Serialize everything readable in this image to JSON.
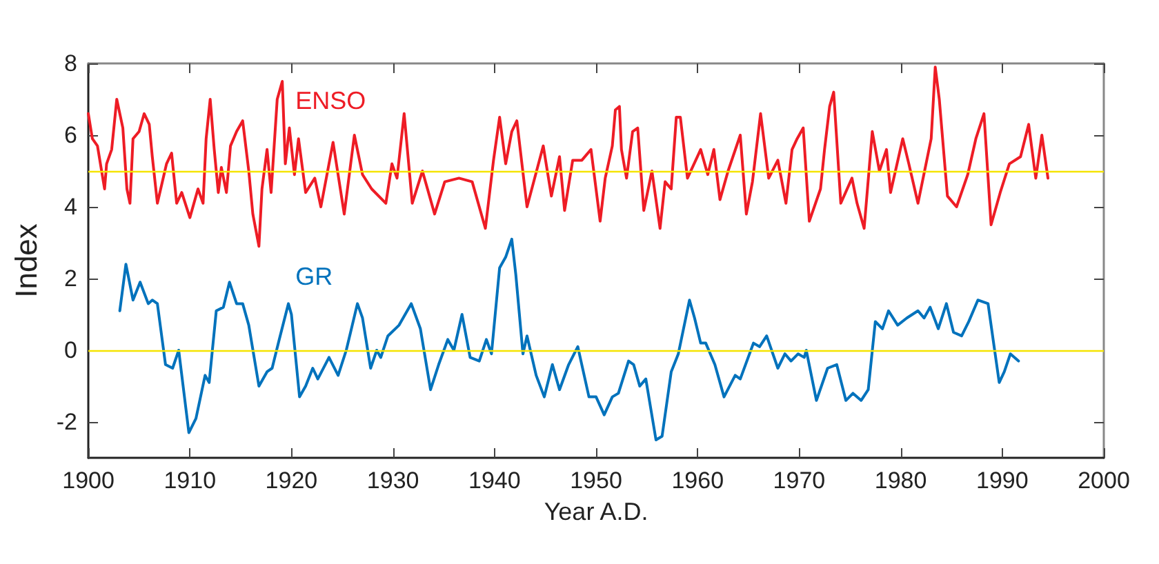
{
  "chart_data": {
    "type": "line",
    "xlabel": "Year A.D.",
    "ylabel": "Index",
    "xlim": [
      1900,
      2000
    ],
    "xticks": [
      1900,
      1910,
      1920,
      1930,
      1940,
      1950,
      1960,
      1970,
      1980,
      1990,
      2000
    ],
    "ylim": [
      -3,
      8
    ],
    "yticks": [
      -2,
      0,
      2,
      4,
      6,
      8
    ],
    "grid": false,
    "legend": false,
    "marker": "none",
    "line_style": "solid",
    "ref_lines": [
      {
        "axis": "y",
        "value": 5,
        "color": "#f5e400"
      },
      {
        "axis": "y",
        "value": 0,
        "color": "#f5e400"
      }
    ],
    "series": [
      {
        "name": "ENSO",
        "color": "#ee1c25",
        "x": [
          1900.0,
          1900.4,
          1900.9,
          1901.6,
          1901.8,
          1902.3,
          1902.8,
          1903.4,
          1903.8,
          1904.1,
          1904.4,
          1905.0,
          1905.5,
          1906.0,
          1906.3,
          1906.8,
          1907.7,
          1908.2,
          1908.7,
          1909.2,
          1910.0,
          1910.8,
          1911.3,
          1911.6,
          1912.0,
          1912.4,
          1912.8,
          1913.1,
          1913.6,
          1914.0,
          1914.6,
          1915.2,
          1915.8,
          1916.2,
          1916.8,
          1917.1,
          1917.6,
          1918.0,
          1918.6,
          1919.1,
          1919.4,
          1919.8,
          1920.3,
          1920.7,
          1921.4,
          1922.3,
          1922.9,
          1924.1,
          1925.2,
          1926.2,
          1927.0,
          1927.9,
          1929.3,
          1929.9,
          1930.4,
          1931.1,
          1931.9,
          1932.9,
          1934.1,
          1935.1,
          1936.5,
          1937.8,
          1939.1,
          1939.9,
          1940.5,
          1941.1,
          1941.7,
          1942.2,
          1943.2,
          1944.8,
          1945.6,
          1946.4,
          1946.9,
          1947.7,
          1948.6,
          1949.5,
          1950.4,
          1950.9,
          1951.6,
          1951.9,
          1952.3,
          1952.5,
          1953.0,
          1953.6,
          1954.1,
          1954.7,
          1955.5,
          1956.3,
          1956.8,
          1957.4,
          1957.9,
          1958.3,
          1959.0,
          1960.3,
          1961.0,
          1961.6,
          1962.2,
          1963.0,
          1964.2,
          1964.8,
          1965.4,
          1966.2,
          1967.0,
          1967.9,
          1968.7,
          1969.3,
          1969.8,
          1970.4,
          1971.0,
          1972.1,
          1972.5,
          1973.0,
          1973.4,
          1974.1,
          1975.2,
          1975.7,
          1976.4,
          1977.2,
          1977.9,
          1978.6,
          1979.0,
          1980.2,
          1980.8,
          1981.7,
          1983.0,
          1983.4,
          1983.8,
          1984.6,
          1985.5,
          1986.6,
          1987.4,
          1988.2,
          1988.9,
          1989.8,
          1990.7,
          1991.8,
          1992.6,
          1993.3,
          1993.9,
          1994.5
        ],
        "values": [
          6.6,
          5.9,
          5.7,
          4.5,
          5.2,
          5.6,
          7.0,
          6.2,
          4.5,
          4.1,
          5.9,
          6.1,
          6.6,
          6.3,
          5.4,
          4.1,
          5.2,
          5.5,
          4.1,
          4.4,
          3.7,
          4.5,
          4.1,
          5.9,
          7.0,
          5.6,
          4.4,
          5.1,
          4.4,
          5.7,
          6.1,
          6.4,
          5.0,
          3.8,
          2.9,
          4.5,
          5.6,
          4.4,
          7.0,
          7.5,
          5.2,
          6.2,
          4.9,
          5.9,
          4.4,
          4.8,
          4.0,
          5.8,
          3.8,
          6.0,
          4.9,
          4.5,
          4.1,
          5.2,
          4.8,
          6.6,
          4.1,
          5.0,
          3.8,
          4.7,
          4.8,
          4.7,
          3.4,
          5.3,
          6.5,
          5.2,
          6.1,
          6.4,
          4.0,
          5.7,
          4.3,
          5.4,
          3.9,
          5.3,
          5.3,
          5.6,
          3.6,
          4.8,
          5.7,
          6.7,
          6.8,
          5.6,
          4.8,
          6.1,
          6.2,
          3.9,
          5.0,
          3.4,
          4.7,
          4.5,
          6.5,
          6.5,
          4.8,
          5.6,
          4.9,
          5.6,
          4.2,
          5.0,
          6.0,
          3.8,
          4.7,
          6.6,
          4.8,
          5.3,
          4.1,
          5.6,
          5.9,
          6.2,
          3.6,
          4.5,
          5.6,
          6.8,
          7.2,
          4.1,
          4.8,
          4.1,
          3.4,
          6.1,
          5.0,
          5.6,
          4.4,
          5.9,
          5.2,
          4.1,
          5.9,
          7.9,
          7.0,
          4.3,
          4.0,
          4.9,
          5.9,
          6.6,
          3.5,
          4.4,
          5.2,
          5.4,
          6.3,
          4.8,
          6.0,
          4.8
        ]
      },
      {
        "name": "GR",
        "color": "#0072bc",
        "x": [
          1903.1,
          1903.7,
          1904.4,
          1905.1,
          1905.9,
          1906.3,
          1906.8,
          1907.6,
          1908.3,
          1908.9,
          1909.9,
          1910.6,
          1911.5,
          1911.9,
          1912.6,
          1913.3,
          1913.9,
          1914.6,
          1915.2,
          1915.8,
          1916.8,
          1917.6,
          1918.1,
          1918.8,
          1919.7,
          1920.0,
          1920.8,
          1921.4,
          1922.1,
          1922.6,
          1923.7,
          1924.6,
          1925.4,
          1926.5,
          1927.0,
          1927.8,
          1928.4,
          1928.8,
          1929.5,
          1930.6,
          1931.8,
          1932.7,
          1933.7,
          1934.5,
          1935.4,
          1936.0,
          1936.8,
          1937.6,
          1938.5,
          1939.2,
          1939.7,
          1940.5,
          1941.1,
          1941.7,
          1942.1,
          1942.8,
          1943.2,
          1944.1,
          1944.9,
          1945.7,
          1946.4,
          1947.3,
          1948.2,
          1949.3,
          1950.0,
          1950.8,
          1951.6,
          1952.2,
          1953.2,
          1953.7,
          1954.3,
          1954.9,
          1955.9,
          1956.5,
          1957.4,
          1958.1,
          1959.2,
          1959.7,
          1960.3,
          1960.8,
          1961.7,
          1962.6,
          1963.7,
          1964.2,
          1965.5,
          1966.1,
          1966.8,
          1967.9,
          1968.6,
          1969.2,
          1969.9,
          1970.5,
          1970.7,
          1971.7,
          1972.8,
          1973.7,
          1974.6,
          1975.3,
          1976.1,
          1976.8,
          1977.5,
          1978.2,
          1978.8,
          1979.7,
          1980.6,
          1981.7,
          1982.3,
          1982.9,
          1983.7,
          1984.5,
          1985.2,
          1986.0,
          1986.7,
          1987.6,
          1988.6,
          1989.7,
          1990.2,
          1990.8,
          1991.6
        ],
        "values": [
          1.1,
          2.4,
          1.4,
          1.9,
          1.3,
          1.4,
          1.3,
          -0.4,
          -0.5,
          0.0,
          -2.3,
          -1.9,
          -0.7,
          -0.9,
          1.1,
          1.2,
          1.9,
          1.3,
          1.3,
          0.7,
          -1.0,
          -0.6,
          -0.5,
          0.3,
          1.3,
          1.0,
          -1.3,
          -1.0,
          -0.5,
          -0.8,
          -0.2,
          -0.7,
          0.0,
          1.3,
          0.9,
          -0.5,
          0.0,
          -0.2,
          0.4,
          0.7,
          1.3,
          0.6,
          -1.1,
          -0.4,
          0.3,
          0.0,
          1.0,
          -0.2,
          -0.3,
          0.3,
          -0.1,
          2.3,
          2.6,
          3.1,
          2.1,
          -0.1,
          0.4,
          -0.7,
          -1.3,
          -0.4,
          -1.1,
          -0.4,
          0.1,
          -1.3,
          -1.3,
          -1.8,
          -1.3,
          -1.2,
          -0.3,
          -0.4,
          -1.0,
          -0.8,
          -2.5,
          -2.4,
          -0.6,
          -0.1,
          1.4,
          0.9,
          0.2,
          0.2,
          -0.4,
          -1.3,
          -0.7,
          -0.8,
          0.2,
          0.1,
          0.4,
          -0.5,
          -0.1,
          -0.3,
          -0.1,
          -0.2,
          0.0,
          -1.4,
          -0.5,
          -0.4,
          -1.4,
          -1.2,
          -1.4,
          -1.1,
          0.8,
          0.6,
          1.1,
          0.7,
          0.9,
          1.1,
          0.9,
          1.2,
          0.6,
          1.3,
          0.5,
          0.4,
          0.8,
          1.4,
          1.3,
          -0.9,
          -0.6,
          -0.1,
          -0.3
        ]
      }
    ]
  }
}
